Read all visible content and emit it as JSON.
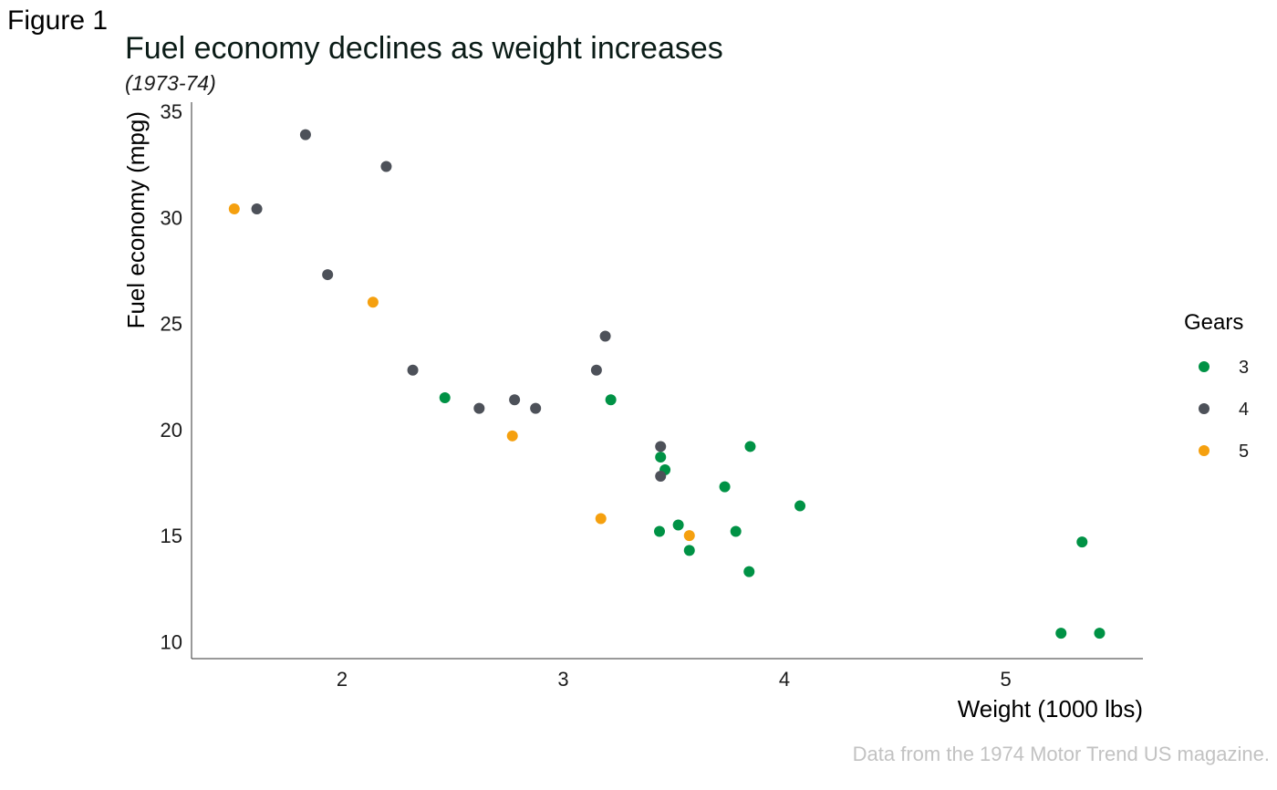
{
  "figure_label": "Figure 1",
  "caption": "Data from the 1974 Motor Trend US magazine.",
  "colors": {
    "3": "#009245",
    "4": "#4d5159",
    "5": "#f5a00f"
  },
  "chart_data": {
    "type": "scatter",
    "title": "Fuel economy declines as weight increases",
    "subtitle": "(1973-74)",
    "xlabel": "Weight (1000 lbs)",
    "ylabel": "Fuel economy (mpg)",
    "xlim": [
      1.32,
      5.62
    ],
    "ylim": [
      9.2,
      35.0
    ],
    "xticks": [
      2,
      3,
      4,
      5
    ],
    "yticks": [
      10,
      15,
      20,
      25,
      30,
      35
    ],
    "grid": false,
    "legend": {
      "title": "Gears",
      "placement": "right",
      "entries": [
        "3",
        "4",
        "5"
      ]
    },
    "series": [
      {
        "name": "3",
        "points": [
          [
            3.215,
            21.4
          ],
          [
            3.44,
            18.7
          ],
          [
            3.46,
            18.1
          ],
          [
            3.57,
            14.3
          ],
          [
            4.07,
            16.4
          ],
          [
            3.73,
            17.3
          ],
          [
            3.78,
            15.2
          ],
          [
            5.25,
            10.4
          ],
          [
            5.424,
            10.4
          ],
          [
            5.345,
            14.7
          ],
          [
            2.465,
            21.5
          ],
          [
            3.52,
            15.5
          ],
          [
            3.435,
            15.2
          ],
          [
            3.84,
            13.3
          ],
          [
            3.845,
            19.2
          ]
        ]
      },
      {
        "name": "4",
        "points": [
          [
            2.62,
            21.0
          ],
          [
            2.875,
            21.0
          ],
          [
            2.32,
            22.8
          ],
          [
            3.19,
            24.4
          ],
          [
            3.15,
            22.8
          ],
          [
            3.44,
            19.2
          ],
          [
            3.44,
            17.8
          ],
          [
            2.2,
            32.4
          ],
          [
            1.615,
            30.4
          ],
          [
            1.835,
            33.9
          ],
          [
            1.935,
            27.3
          ],
          [
            2.78,
            21.4
          ]
        ]
      },
      {
        "name": "5",
        "points": [
          [
            2.14,
            26.0
          ],
          [
            1.513,
            30.4
          ],
          [
            3.17,
            15.8
          ],
          [
            2.77,
            19.7
          ],
          [
            3.57,
            15.0
          ]
        ]
      }
    ]
  }
}
